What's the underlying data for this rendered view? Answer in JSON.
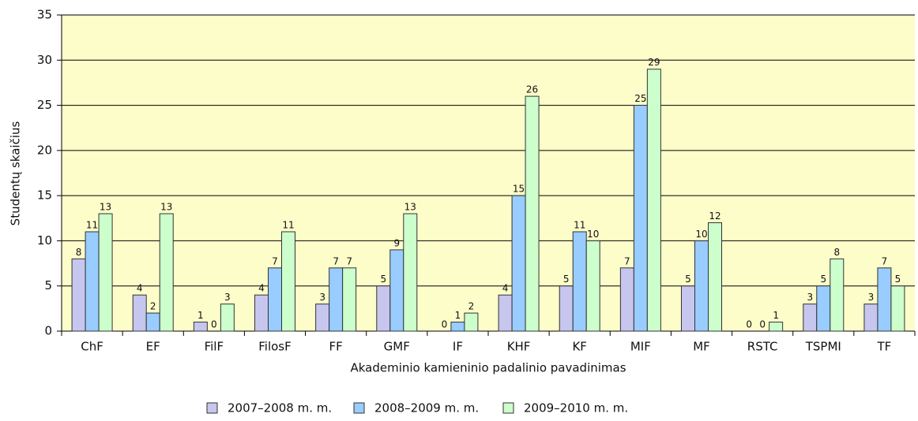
{
  "chart_data": {
    "type": "bar",
    "y_label": "Studentų skaičius",
    "x_label": "Akademinio kamieninio padalinio pavadinimas",
    "categories": [
      "ChF",
      "EF",
      "FilF",
      "FilosF",
      "FF",
      "GMF",
      "IF",
      "KHF",
      "KF",
      "MIF",
      "MF",
      "RSTC",
      "TSPMI",
      "TF"
    ],
    "series": [
      {
        "name": "2007–2008 m. m.",
        "color": "#c6c6ee",
        "values": [
          8,
          4,
          1,
          4,
          3,
          5,
          0,
          4,
          5,
          7,
          5,
          0,
          3,
          3
        ]
      },
      {
        "name": "2008–2009 m. m.",
        "color": "#99ccff",
        "values": [
          11,
          2,
          0,
          7,
          7,
          9,
          1,
          15,
          11,
          25,
          10,
          0,
          5,
          7
        ]
      },
      {
        "name": "2009–2010 m. m.",
        "color": "#ccffcc",
        "values": [
          13,
          13,
          3,
          11,
          7,
          13,
          2,
          26,
          10,
          29,
          12,
          1,
          8,
          5
        ]
      }
    ],
    "ylim": [
      0,
      35
    ],
    "yticks": [
      0,
      5,
      10,
      15,
      20,
      25,
      30,
      35
    ],
    "grid": true,
    "plot_background": "#fdfdca",
    "legend": "bottom"
  }
}
